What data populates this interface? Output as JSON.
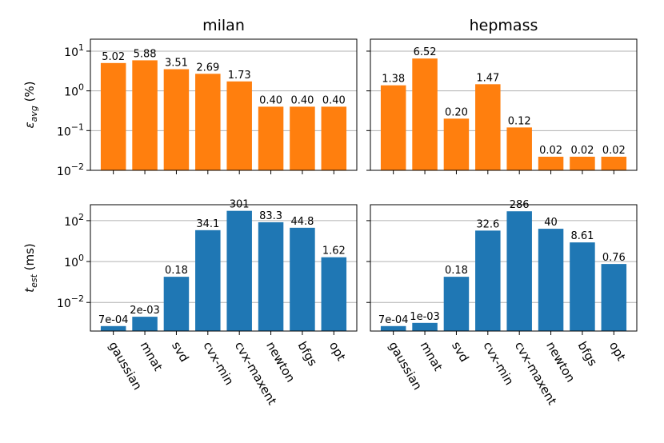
{
  "chart_data": {
    "type": "bar",
    "categories": [
      "gaussian",
      "mnat",
      "svd",
      "cvx-min",
      "cvx-maxent",
      "newton",
      "bfgs",
      "opt"
    ],
    "column_titles": [
      "milan",
      "hepmass"
    ],
    "rows": [
      {
        "ylabel_main": "ε",
        "ylabel_sub": "avg",
        "ylabel_unit": " (%)",
        "scale": "log",
        "ylim": [
          0.01,
          20
        ],
        "ticks": [
          0.01,
          0.1,
          1,
          10
        ],
        "tick_labels": [
          {
            "base": "10",
            "exp": "−2"
          },
          {
            "base": "10",
            "exp": "−1"
          },
          {
            "base": "10",
            "exp": "0"
          },
          {
            "base": "10",
            "exp": "1"
          }
        ],
        "color": "#ff7f0e",
        "grid": true
      },
      {
        "ylabel_main": "t",
        "ylabel_sub": "est",
        "ylabel_unit": " (ms)",
        "scale": "log",
        "ylim": [
          0.0004,
          600
        ],
        "ticks": [
          0.01,
          1,
          100
        ],
        "tick_labels": [
          {
            "base": "10",
            "exp": "−2"
          },
          {
            "base": "10",
            "exp": "0"
          },
          {
            "base": "10",
            "exp": "2"
          }
        ],
        "color": "#1f77b4",
        "grid": true
      }
    ],
    "panels": [
      {
        "row": 0,
        "col": 0,
        "title": "milan",
        "values": [
          5.02,
          5.88,
          3.51,
          2.69,
          1.73,
          0.4,
          0.4,
          0.4
        ],
        "labels": [
          "5.02",
          "5.88",
          "3.51",
          "2.69",
          "1.73",
          "0.40",
          "0.40",
          "0.40"
        ]
      },
      {
        "row": 0,
        "col": 1,
        "title": "hepmass",
        "values": [
          1.38,
          6.52,
          0.2,
          1.47,
          0.12,
          0.022,
          0.022,
          0.022
        ],
        "labels": [
          "1.38",
          "6.52",
          "0.20",
          "1.47",
          "0.12",
          "0.02",
          "0.02",
          "0.02"
        ]
      },
      {
        "row": 1,
        "col": 0,
        "title": "",
        "values": [
          0.0007,
          0.002,
          0.18,
          34.1,
          301,
          83.3,
          44.8,
          1.62
        ],
        "labels": [
          "7e-04",
          "2e-03",
          "0.18",
          "34.1",
          "301",
          "83.3",
          "44.8",
          "1.62"
        ]
      },
      {
        "row": 1,
        "col": 1,
        "title": "",
        "values": [
          0.0007,
          0.001,
          0.18,
          32.6,
          286,
          40,
          8.61,
          0.76
        ],
        "labels": [
          "7e-04",
          "1e-03",
          "0.18",
          "32.6",
          "286",
          "40",
          "8.61",
          "0.76"
        ]
      }
    ]
  }
}
